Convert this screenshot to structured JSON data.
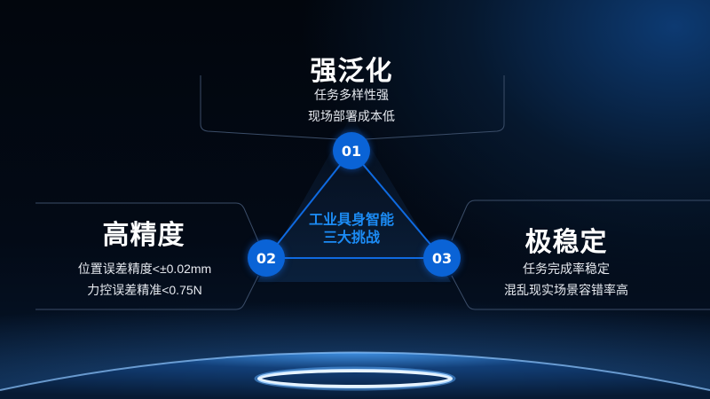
{
  "center": {
    "line1": "工业具身智能",
    "line2": "三大挑战"
  },
  "challenges": [
    {
      "number": "01",
      "title": "强泛化",
      "lines": [
        "任务多样性强",
        "现场部署成本低"
      ]
    },
    {
      "number": "02",
      "title": "高精度",
      "lines": [
        "位置误差精度<±0.02mm",
        "力控误差精准<0.75N"
      ]
    },
    {
      "number": "03",
      "title": "极稳定",
      "lines": [
        "任务完成率稳定",
        "混乱现实场景容错率高"
      ]
    }
  ],
  "colors": {
    "accent": "#0a63d6",
    "center_text": "#1c8cf5",
    "background": "#02060d"
  }
}
